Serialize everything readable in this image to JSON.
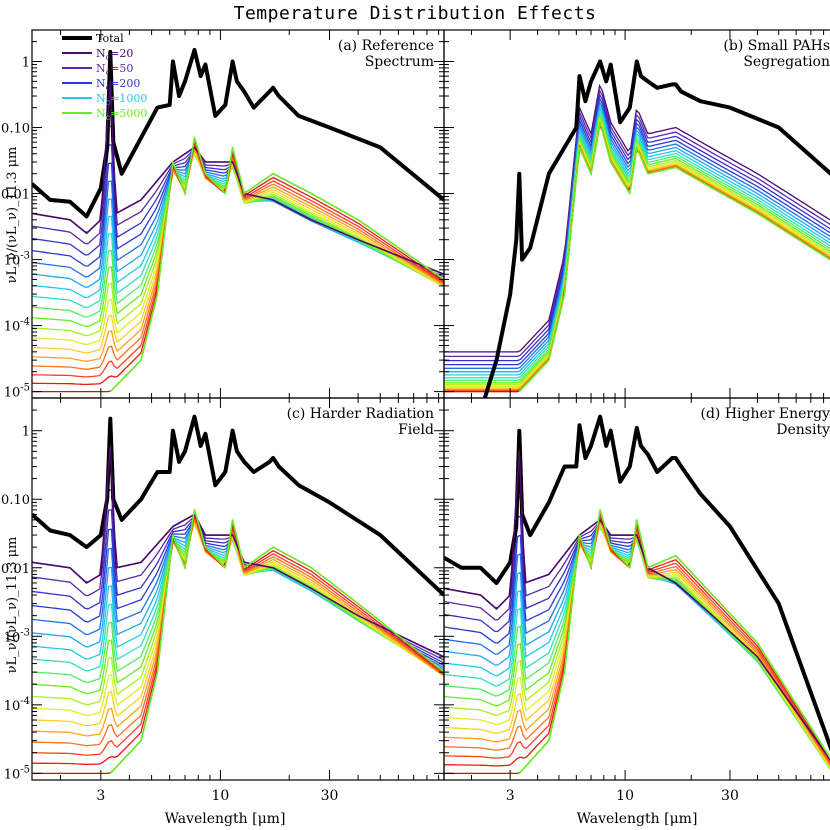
{
  "figure": {
    "title": "Temperature Distribution Effects",
    "ylabel": "νL_ν/(νL_ν)_11.3 μm",
    "xlabel": "Wavelength [μm]"
  },
  "colors": {
    "total": "#000000",
    "Nc20": "#4b0a6e",
    "Nc50": "#5a2aa8",
    "Nc200": "#2a3ad8",
    "Nc1000": "#20c8f0",
    "Nc5000": "#66ee22"
  },
  "legend": [
    {
      "label": "Total",
      "color": "#000000"
    },
    {
      "label": "N_c=20",
      "color": "#4b0a6e"
    },
    {
      "label": "N_c=50",
      "color": "#5a2aa8"
    },
    {
      "label": "N_c=200",
      "color": "#2a3ad8"
    },
    {
      "label": "N_c=1000",
      "color": "#20c8f0"
    },
    {
      "label": "N_c=5000",
      "color": "#66ee22"
    }
  ],
  "chart_data": [
    {
      "type": "line",
      "panel": "a",
      "title": "(a) Reference",
      "subtitle": "Spectrum",
      "xlabel": "",
      "ylabel": "νL_ν/(νL_ν)_11.3 μm",
      "xscale": "log",
      "yscale": "log",
      "xlim": [
        1.5,
        95
      ],
      "ylim": [
        8e-06,
        3
      ],
      "x_ticks": [
        "3",
        "10",
        "30"
      ],
      "y_ticks": [
        "1",
        "0.10",
        "0.01",
        "10^-3",
        "10^-4",
        "10^-5"
      ],
      "series": [
        {
          "name": "Total",
          "x": [
            1.5,
            1.8,
            2.2,
            2.6,
            3.0,
            3.2,
            3.3,
            3.4,
            3.7,
            4.5,
            5.3,
            6.0,
            6.2,
            6.6,
            7.0,
            7.7,
            8.2,
            8.6,
            9.5,
            10.5,
            11.3,
            11.8,
            12.7,
            14,
            16.4,
            17.0,
            18,
            22,
            30,
            50,
            95
          ],
          "y": [
            0.014,
            0.008,
            0.0075,
            0.0045,
            0.012,
            0.05,
            1.4,
            0.06,
            0.02,
            0.07,
            0.2,
            0.22,
            1.0,
            0.3,
            0.5,
            1.5,
            0.6,
            0.9,
            0.15,
            0.22,
            1.0,
            0.5,
            0.35,
            0.2,
            0.35,
            0.4,
            0.3,
            0.15,
            0.1,
            0.05,
            0.008
          ]
        },
        {
          "name": "N_c=20",
          "x": [
            1.5,
            2.2,
            2.6,
            3.0,
            3.3,
            3.5,
            4.5,
            6.2,
            7.7,
            8.6,
            11.3,
            12.7,
            17,
            25,
            40,
            95
          ],
          "y": [
            0.005,
            0.004,
            0.0025,
            0.004,
            0.5,
            0.005,
            0.008,
            0.03,
            0.05,
            0.03,
            0.03,
            0.01,
            0.008,
            0.004,
            0.002,
            0.0006
          ]
        },
        {
          "name": "N_c=5000",
          "x": [
            3.3,
            4.5,
            5.3,
            6.2,
            7.0,
            7.7,
            8.6,
            10.5,
            11.3,
            12.7,
            17,
            25,
            40,
            95
          ],
          "y": [
            1e-05,
            3e-05,
            0.0003,
            0.03,
            0.01,
            0.07,
            0.02,
            0.01,
            0.05,
            0.01,
            0.02,
            0.01,
            0.004,
            0.0005
          ]
        }
      ]
    },
    {
      "type": "line",
      "panel": "b",
      "title": "(b) Small PAHs",
      "subtitle": "Segregation",
      "xlabel": "",
      "ylabel": "",
      "xscale": "log",
      "yscale": "log",
      "xlim": [
        1.5,
        95
      ],
      "ylim": [
        8e-06,
        3
      ],
      "x_ticks": [
        "3",
        "10",
        "30"
      ],
      "y_ticks": [],
      "series": [
        {
          "name": "Total",
          "x": [
            2.3,
            2.6,
            3.0,
            3.2,
            3.3,
            3.4,
            3.7,
            4.5,
            5.3,
            6.0,
            6.2,
            6.6,
            7.0,
            7.7,
            8.2,
            8.6,
            9.5,
            10.5,
            11.3,
            11.8,
            12.7,
            14,
            16.4,
            17.0,
            18,
            22,
            30,
            50,
            95
          ],
          "y": [
            8e-06,
            3e-05,
            0.0003,
            0.002,
            0.02,
            0.001,
            0.0015,
            0.02,
            0.05,
            0.1,
            0.6,
            0.25,
            0.5,
            1.0,
            0.5,
            0.9,
            0.12,
            0.2,
            1.0,
            0.6,
            0.5,
            0.4,
            0.45,
            0.45,
            0.35,
            0.25,
            0.2,
            0.1,
            0.015
          ]
        },
        {
          "name": "N_c=5000",
          "x": [
            3.3,
            4.5,
            5.3,
            6.2,
            7.0,
            7.7,
            8.6,
            10.5,
            11.3,
            12.7,
            17,
            25,
            40,
            95
          ],
          "y": [
            1e-05,
            3e-05,
            0.0003,
            0.05,
            0.02,
            0.12,
            0.03,
            0.01,
            0.05,
            0.02,
            0.025,
            0.012,
            0.005,
            0.0008
          ]
        }
      ]
    },
    {
      "type": "line",
      "panel": "c",
      "title": "(c) Harder Radiation",
      "subtitle": "Field",
      "xlabel": "Wavelength [μm]",
      "ylabel": "νL_ν/(νL_ν)_11.3 μm",
      "xscale": "log",
      "yscale": "log",
      "xlim": [
        1.5,
        95
      ],
      "ylim": [
        8e-06,
        3
      ],
      "x_ticks": [
        "3",
        "10",
        "30"
      ],
      "y_ticks": [
        "1",
        "0.10",
        "0.01",
        "10^-3",
        "10^-4",
        "10^-5"
      ],
      "series": [
        {
          "name": "Total",
          "x": [
            1.5,
            1.8,
            2.2,
            2.6,
            3.0,
            3.2,
            3.3,
            3.4,
            3.7,
            4.5,
            5.3,
            6.0,
            6.2,
            6.6,
            7.0,
            7.7,
            8.2,
            8.6,
            9.5,
            10.5,
            11.3,
            11.8,
            12.7,
            14,
            16.4,
            17.0,
            18,
            22,
            30,
            50,
            95
          ],
          "y": [
            0.06,
            0.035,
            0.03,
            0.02,
            0.03,
            0.1,
            1.5,
            0.1,
            0.05,
            0.1,
            0.25,
            0.25,
            1.0,
            0.35,
            0.5,
            1.6,
            0.6,
            0.9,
            0.16,
            0.25,
            1.0,
            0.5,
            0.35,
            0.25,
            0.35,
            0.4,
            0.3,
            0.16,
            0.09,
            0.03,
            0.004
          ]
        },
        {
          "name": "N_c=20",
          "x": [
            1.5,
            2.2,
            2.6,
            3.0,
            3.3,
            3.5,
            4.5,
            6.2,
            7.7,
            8.6,
            11.3,
            12.7,
            17,
            25,
            40,
            95
          ],
          "y": [
            0.012,
            0.01,
            0.006,
            0.008,
            0.6,
            0.01,
            0.012,
            0.04,
            0.06,
            0.03,
            0.03,
            0.012,
            0.01,
            0.005,
            0.002,
            0.0005
          ]
        },
        {
          "name": "N_c=5000",
          "x": [
            3.3,
            4.5,
            5.3,
            6.2,
            7.0,
            7.7,
            8.6,
            10.5,
            11.3,
            12.7,
            17,
            25,
            40,
            95
          ],
          "y": [
            1e-05,
            3e-05,
            0.0003,
            0.03,
            0.01,
            0.07,
            0.02,
            0.01,
            0.05,
            0.01,
            0.02,
            0.01,
            0.003,
            0.0003
          ]
        }
      ]
    },
    {
      "type": "line",
      "panel": "d",
      "title": "(d) Higher Energy",
      "subtitle": "Density",
      "xlabel": "Wavelength [μm]",
      "ylabel": "",
      "xscale": "log",
      "yscale": "log",
      "xlim": [
        1.5,
        95
      ],
      "ylim": [
        8e-06,
        3
      ],
      "x_ticks": [
        "3",
        "10",
        "30"
      ],
      "y_ticks": [],
      "series": [
        {
          "name": "Total",
          "x": [
            1.5,
            1.8,
            2.2,
            2.6,
            3.0,
            3.2,
            3.3,
            3.4,
            3.7,
            4.5,
            5.3,
            6.0,
            6.2,
            6.6,
            7.0,
            7.7,
            8.2,
            8.6,
            9.5,
            10.5,
            11.3,
            11.8,
            12.7,
            14,
            16.4,
            17.0,
            18,
            22,
            30,
            50,
            95
          ],
          "y": [
            0.014,
            0.01,
            0.01,
            0.006,
            0.012,
            0.04,
            1.0,
            0.06,
            0.03,
            0.09,
            0.3,
            0.3,
            1.2,
            0.4,
            0.6,
            1.6,
            0.6,
            1.0,
            0.18,
            0.3,
            1.1,
            0.6,
            0.45,
            0.25,
            0.4,
            0.4,
            0.3,
            0.12,
            0.04,
            0.003,
            1e-05
          ]
        },
        {
          "name": "N_c=20",
          "x": [
            1.5,
            2.2,
            2.6,
            3.0,
            3.3,
            3.5,
            4.5,
            6.2,
            7.7,
            8.6,
            11.3,
            12.7,
            17,
            25,
            40,
            95
          ],
          "y": [
            0.005,
            0.004,
            0.0025,
            0.004,
            0.5,
            0.006,
            0.008,
            0.03,
            0.05,
            0.03,
            0.03,
            0.01,
            0.006,
            0.002,
            0.0005,
            1e-05
          ]
        },
        {
          "name": "N_c=5000",
          "x": [
            3.3,
            4.5,
            5.3,
            6.2,
            7.0,
            7.7,
            8.6,
            10.5,
            11.3,
            12.7,
            17,
            25,
            40,
            95
          ],
          "y": [
            1e-05,
            3e-05,
            0.0003,
            0.03,
            0.01,
            0.07,
            0.02,
            0.01,
            0.05,
            0.01,
            0.015,
            0.004,
            0.0008,
            1e-05
          ]
        }
      ]
    }
  ]
}
